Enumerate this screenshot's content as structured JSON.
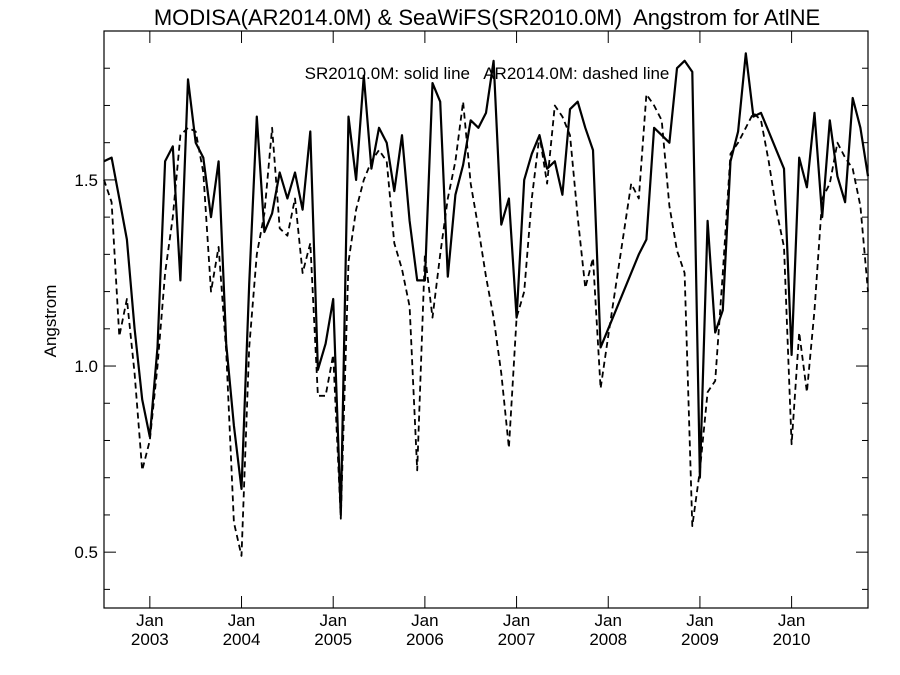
{
  "chart_data": {
    "type": "line",
    "title": "MODISA(AR2014.0M) & SeaWiFS(SR2010.0M)  Angstrom for AtlNE",
    "annotation": "SR2010.0M: solid line   AR2014.0M: dashed line",
    "ylabel": "Angstrom",
    "xlabel": "",
    "ylim": [
      0.35,
      1.9
    ],
    "xlim": [
      "2002-07-01",
      "2010-11-01"
    ],
    "yticks": [
      0.5,
      1.0,
      1.5
    ],
    "ytick_labels": [
      "0.5",
      "1.0",
      "1.5"
    ],
    "xticks": [
      {
        "date": "2003-01",
        "month": "Jan",
        "year": "2003"
      },
      {
        "date": "2004-01",
        "month": "Jan",
        "year": "2004"
      },
      {
        "date": "2005-01",
        "month": "Jan",
        "year": "2005"
      },
      {
        "date": "2006-01",
        "month": "Jan",
        "year": "2006"
      },
      {
        "date": "2007-01",
        "month": "Jan",
        "year": "2007"
      },
      {
        "date": "2008-01",
        "month": "Jan",
        "year": "2008"
      },
      {
        "date": "2009-01",
        "month": "Jan",
        "year": "2009"
      },
      {
        "date": "2010-01",
        "month": "Jan",
        "year": "2010"
      }
    ],
    "grid": false,
    "series": [
      {
        "name": "SR2010.0M",
        "style": "solid",
        "color": "#000000",
        "points": [
          [
            "2002-07",
            1.55
          ],
          [
            "2002-08",
            1.56
          ],
          [
            "2002-09",
            1.45
          ],
          [
            "2002-10",
            1.34
          ],
          [
            "2002-11",
            1.1
          ],
          [
            "2002-12",
            0.91
          ],
          [
            "2003-01",
            0.81
          ],
          [
            "2003-02",
            1.05
          ],
          [
            "2003-03",
            1.55
          ],
          [
            "2003-04",
            1.59
          ],
          [
            "2003-05",
            1.23
          ],
          [
            "2003-06",
            1.77
          ],
          [
            "2003-07",
            1.6
          ],
          [
            "2003-08",
            1.56
          ],
          [
            "2003-09",
            1.4
          ],
          [
            "2003-10",
            1.55
          ],
          [
            "2003-11",
            1.06
          ],
          [
            "2003-12",
            0.84
          ],
          [
            "2004-01",
            0.67
          ],
          [
            "2004-02",
            1.22
          ],
          [
            "2004-03",
            1.67
          ],
          [
            "2004-04",
            1.36
          ],
          [
            "2004-05",
            1.41
          ],
          [
            "2004-06",
            1.52
          ],
          [
            "2004-07",
            1.45
          ],
          [
            "2004-08",
            1.52
          ],
          [
            "2004-09",
            1.42
          ],
          [
            "2004-10",
            1.63
          ],
          [
            "2004-11",
            0.99
          ],
          [
            "2004-12",
            1.06
          ],
          [
            "2005-01",
            1.18
          ],
          [
            "2005-02",
            0.6
          ],
          [
            "2005-03",
            1.67
          ],
          [
            "2005-04",
            1.5
          ],
          [
            "2005-05",
            1.78
          ],
          [
            "2005-06",
            1.53
          ],
          [
            "2005-07",
            1.64
          ],
          [
            "2005-08",
            1.6
          ],
          [
            "2005-09",
            1.47
          ],
          [
            "2005-10",
            1.62
          ],
          [
            "2005-11",
            1.39
          ],
          [
            "2005-12",
            1.23
          ],
          [
            "2006-01",
            1.23
          ],
          [
            "2006-02",
            1.76
          ],
          [
            "2006-03",
            1.71
          ],
          [
            "2006-04",
            1.24
          ],
          [
            "2006-05",
            1.46
          ],
          [
            "2006-06",
            1.54
          ],
          [
            "2006-07",
            1.66
          ],
          [
            "2006-08",
            1.64
          ],
          [
            "2006-09",
            1.68
          ],
          [
            "2006-10",
            1.82
          ],
          [
            "2006-11",
            1.38
          ],
          [
            "2006-12",
            1.45
          ],
          [
            "2007-01",
            1.13
          ],
          [
            "2007-02",
            1.5
          ],
          [
            "2007-03",
            1.57
          ],
          [
            "2007-04",
            1.62
          ],
          [
            "2007-05",
            1.53
          ],
          [
            "2007-06",
            1.55
          ],
          [
            "2007-07",
            1.46
          ],
          [
            "2007-08",
            1.69
          ],
          [
            "2007-09",
            1.71
          ],
          [
            "2007-10",
            1.64
          ],
          [
            "2007-11",
            1.58
          ],
          [
            "2007-12",
            1.05
          ],
          [
            "2008-05",
            1.3
          ],
          [
            "2008-06",
            1.34
          ],
          [
            "2008-07",
            1.64
          ],
          [
            "2008-08",
            1.62
          ],
          [
            "2008-09",
            1.6
          ],
          [
            "2008-10",
            1.8
          ],
          [
            "2008-11",
            1.82
          ],
          [
            "2008-12",
            1.79
          ],
          [
            "2009-01",
            0.7
          ],
          [
            "2009-02",
            1.39
          ],
          [
            "2009-03",
            1.09
          ],
          [
            "2009-04",
            1.15
          ],
          [
            "2009-05",
            1.55
          ],
          [
            "2009-06",
            1.63
          ],
          [
            "2009-07",
            1.84
          ],
          [
            "2009-08",
            1.67
          ],
          [
            "2009-09",
            1.68
          ],
          [
            "2009-10",
            1.63
          ],
          [
            "2009-11",
            1.58
          ],
          [
            "2009-12",
            1.53
          ],
          [
            "2010-01",
            1.03
          ],
          [
            "2010-02",
            1.56
          ],
          [
            "2010-03",
            1.48
          ],
          [
            "2010-04",
            1.68
          ],
          [
            "2010-05",
            1.4
          ],
          [
            "2010-06",
            1.66
          ],
          [
            "2010-07",
            1.51
          ],
          [
            "2010-08",
            1.44
          ],
          [
            "2010-09",
            1.72
          ],
          [
            "2010-10",
            1.64
          ],
          [
            "2010-11",
            1.51
          ]
        ]
      },
      {
        "name": "AR2014.0M",
        "style": "dashed",
        "color": "#000000",
        "points": [
          [
            "2002-07",
            1.5
          ],
          [
            "2002-08",
            1.44
          ],
          [
            "2002-09",
            1.08
          ],
          [
            "2002-10",
            1.18
          ],
          [
            "2002-11",
            0.98
          ],
          [
            "2002-12",
            0.72
          ],
          [
            "2003-01",
            0.8
          ],
          [
            "2003-02",
            1.0
          ],
          [
            "2003-03",
            1.25
          ],
          [
            "2003-04",
            1.4
          ],
          [
            "2003-05",
            1.62
          ],
          [
            "2003-06",
            1.64
          ],
          [
            "2003-07",
            1.63
          ],
          [
            "2003-08",
            1.52
          ],
          [
            "2003-09",
            1.2
          ],
          [
            "2003-10",
            1.32
          ],
          [
            "2003-11",
            1.04
          ],
          [
            "2003-12",
            0.58
          ],
          [
            "2004-01",
            0.49
          ],
          [
            "2004-02",
            1.05
          ],
          [
            "2004-03",
            1.3
          ],
          [
            "2004-04",
            1.41
          ],
          [
            "2004-05",
            1.64
          ],
          [
            "2004-06",
            1.37
          ],
          [
            "2004-07",
            1.35
          ],
          [
            "2004-08",
            1.45
          ],
          [
            "2004-09",
            1.25
          ],
          [
            "2004-10",
            1.33
          ],
          [
            "2004-11",
            0.92
          ],
          [
            "2004-12",
            0.92
          ],
          [
            "2005-01",
            1.03
          ],
          [
            "2005-02",
            0.59
          ],
          [
            "2005-03",
            1.28
          ],
          [
            "2005-04",
            1.42
          ],
          [
            "2005-05",
            1.5
          ],
          [
            "2005-06",
            1.55
          ],
          [
            "2005-07",
            1.58
          ],
          [
            "2005-08",
            1.55
          ],
          [
            "2005-09",
            1.33
          ],
          [
            "2005-10",
            1.26
          ],
          [
            "2005-11",
            1.16
          ],
          [
            "2005-12",
            0.72
          ],
          [
            "2006-01",
            1.3
          ],
          [
            "2006-02",
            1.13
          ],
          [
            "2006-03",
            1.3
          ],
          [
            "2006-04",
            1.45
          ],
          [
            "2006-05",
            1.55
          ],
          [
            "2006-06",
            1.71
          ],
          [
            "2006-07",
            1.49
          ],
          [
            "2006-08",
            1.37
          ],
          [
            "2006-09",
            1.24
          ],
          [
            "2006-10",
            1.13
          ],
          [
            "2006-11",
            0.98
          ],
          [
            "2006-12",
            0.78
          ],
          [
            "2007-01",
            1.13
          ],
          [
            "2007-02",
            1.2
          ],
          [
            "2007-03",
            1.45
          ],
          [
            "2007-04",
            1.62
          ],
          [
            "2007-05",
            1.49
          ],
          [
            "2007-06",
            1.7
          ],
          [
            "2007-07",
            1.67
          ],
          [
            "2007-08",
            1.62
          ],
          [
            "2007-09",
            1.4
          ],
          [
            "2007-10",
            1.21
          ],
          [
            "2007-11",
            1.29
          ],
          [
            "2007-12",
            0.94
          ],
          [
            "2008-01",
            1.08
          ],
          [
            "2008-04",
            1.49
          ],
          [
            "2008-05",
            1.45
          ],
          [
            "2008-06",
            1.73
          ],
          [
            "2008-07",
            1.7
          ],
          [
            "2008-08",
            1.66
          ],
          [
            "2008-09",
            1.43
          ],
          [
            "2008-10",
            1.31
          ],
          [
            "2008-11",
            1.25
          ],
          [
            "2008-12",
            0.57
          ],
          [
            "2009-01",
            0.72
          ],
          [
            "2009-02",
            0.93
          ],
          [
            "2009-03",
            0.96
          ],
          [
            "2009-04",
            1.25
          ],
          [
            "2009-05",
            1.57
          ],
          [
            "2009-06",
            1.6
          ],
          [
            "2009-07",
            1.64
          ],
          [
            "2009-08",
            1.68
          ],
          [
            "2009-09",
            1.66
          ],
          [
            "2009-10",
            1.55
          ],
          [
            "2009-11",
            1.42
          ],
          [
            "2009-12",
            1.32
          ],
          [
            "2010-01",
            0.79
          ],
          [
            "2010-02",
            1.09
          ],
          [
            "2010-03",
            0.93
          ],
          [
            "2010-04",
            1.15
          ],
          [
            "2010-05",
            1.45
          ],
          [
            "2010-06",
            1.49
          ],
          [
            "2010-07",
            1.6
          ],
          [
            "2010-08",
            1.56
          ],
          [
            "2010-09",
            1.53
          ],
          [
            "2010-10",
            1.43
          ],
          [
            "2010-11",
            1.2
          ]
        ]
      }
    ]
  }
}
